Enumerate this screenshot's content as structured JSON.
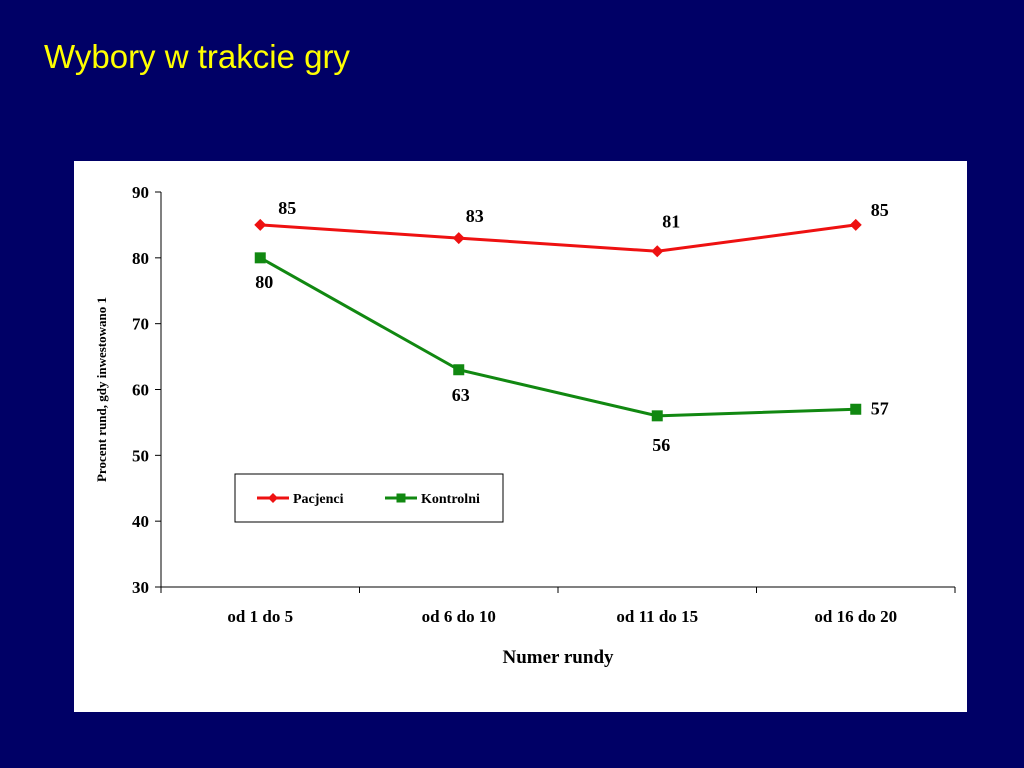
{
  "slide": {
    "title": "Wybory w trakcie gry",
    "colors": {
      "background": "#000066",
      "title": "#ffff00",
      "panel": "#ffffff"
    }
  },
  "chart_data": {
    "type": "line",
    "title": "",
    "xlabel": "Numer rundy",
    "ylabel": "Procent rund, gdy inwestowano 1",
    "categories": [
      "od 1 do 5",
      "od 6 do 10",
      "od 11 do 15",
      "od 16 do 20"
    ],
    "ylim": [
      30,
      90
    ],
    "yticks": [
      30,
      40,
      50,
      60,
      70,
      80,
      90
    ],
    "grid": false,
    "legend_placement": "bottom-left inside plot",
    "series": [
      {
        "name": "Pacjenci",
        "values": [
          85,
          83,
          81,
          85
        ],
        "color": "#ee1111",
        "marker": "diamond"
      },
      {
        "name": "Kontrolni",
        "values": [
          80,
          63,
          56,
          57
        ],
        "color": "#118811",
        "marker": "square"
      }
    ]
  }
}
